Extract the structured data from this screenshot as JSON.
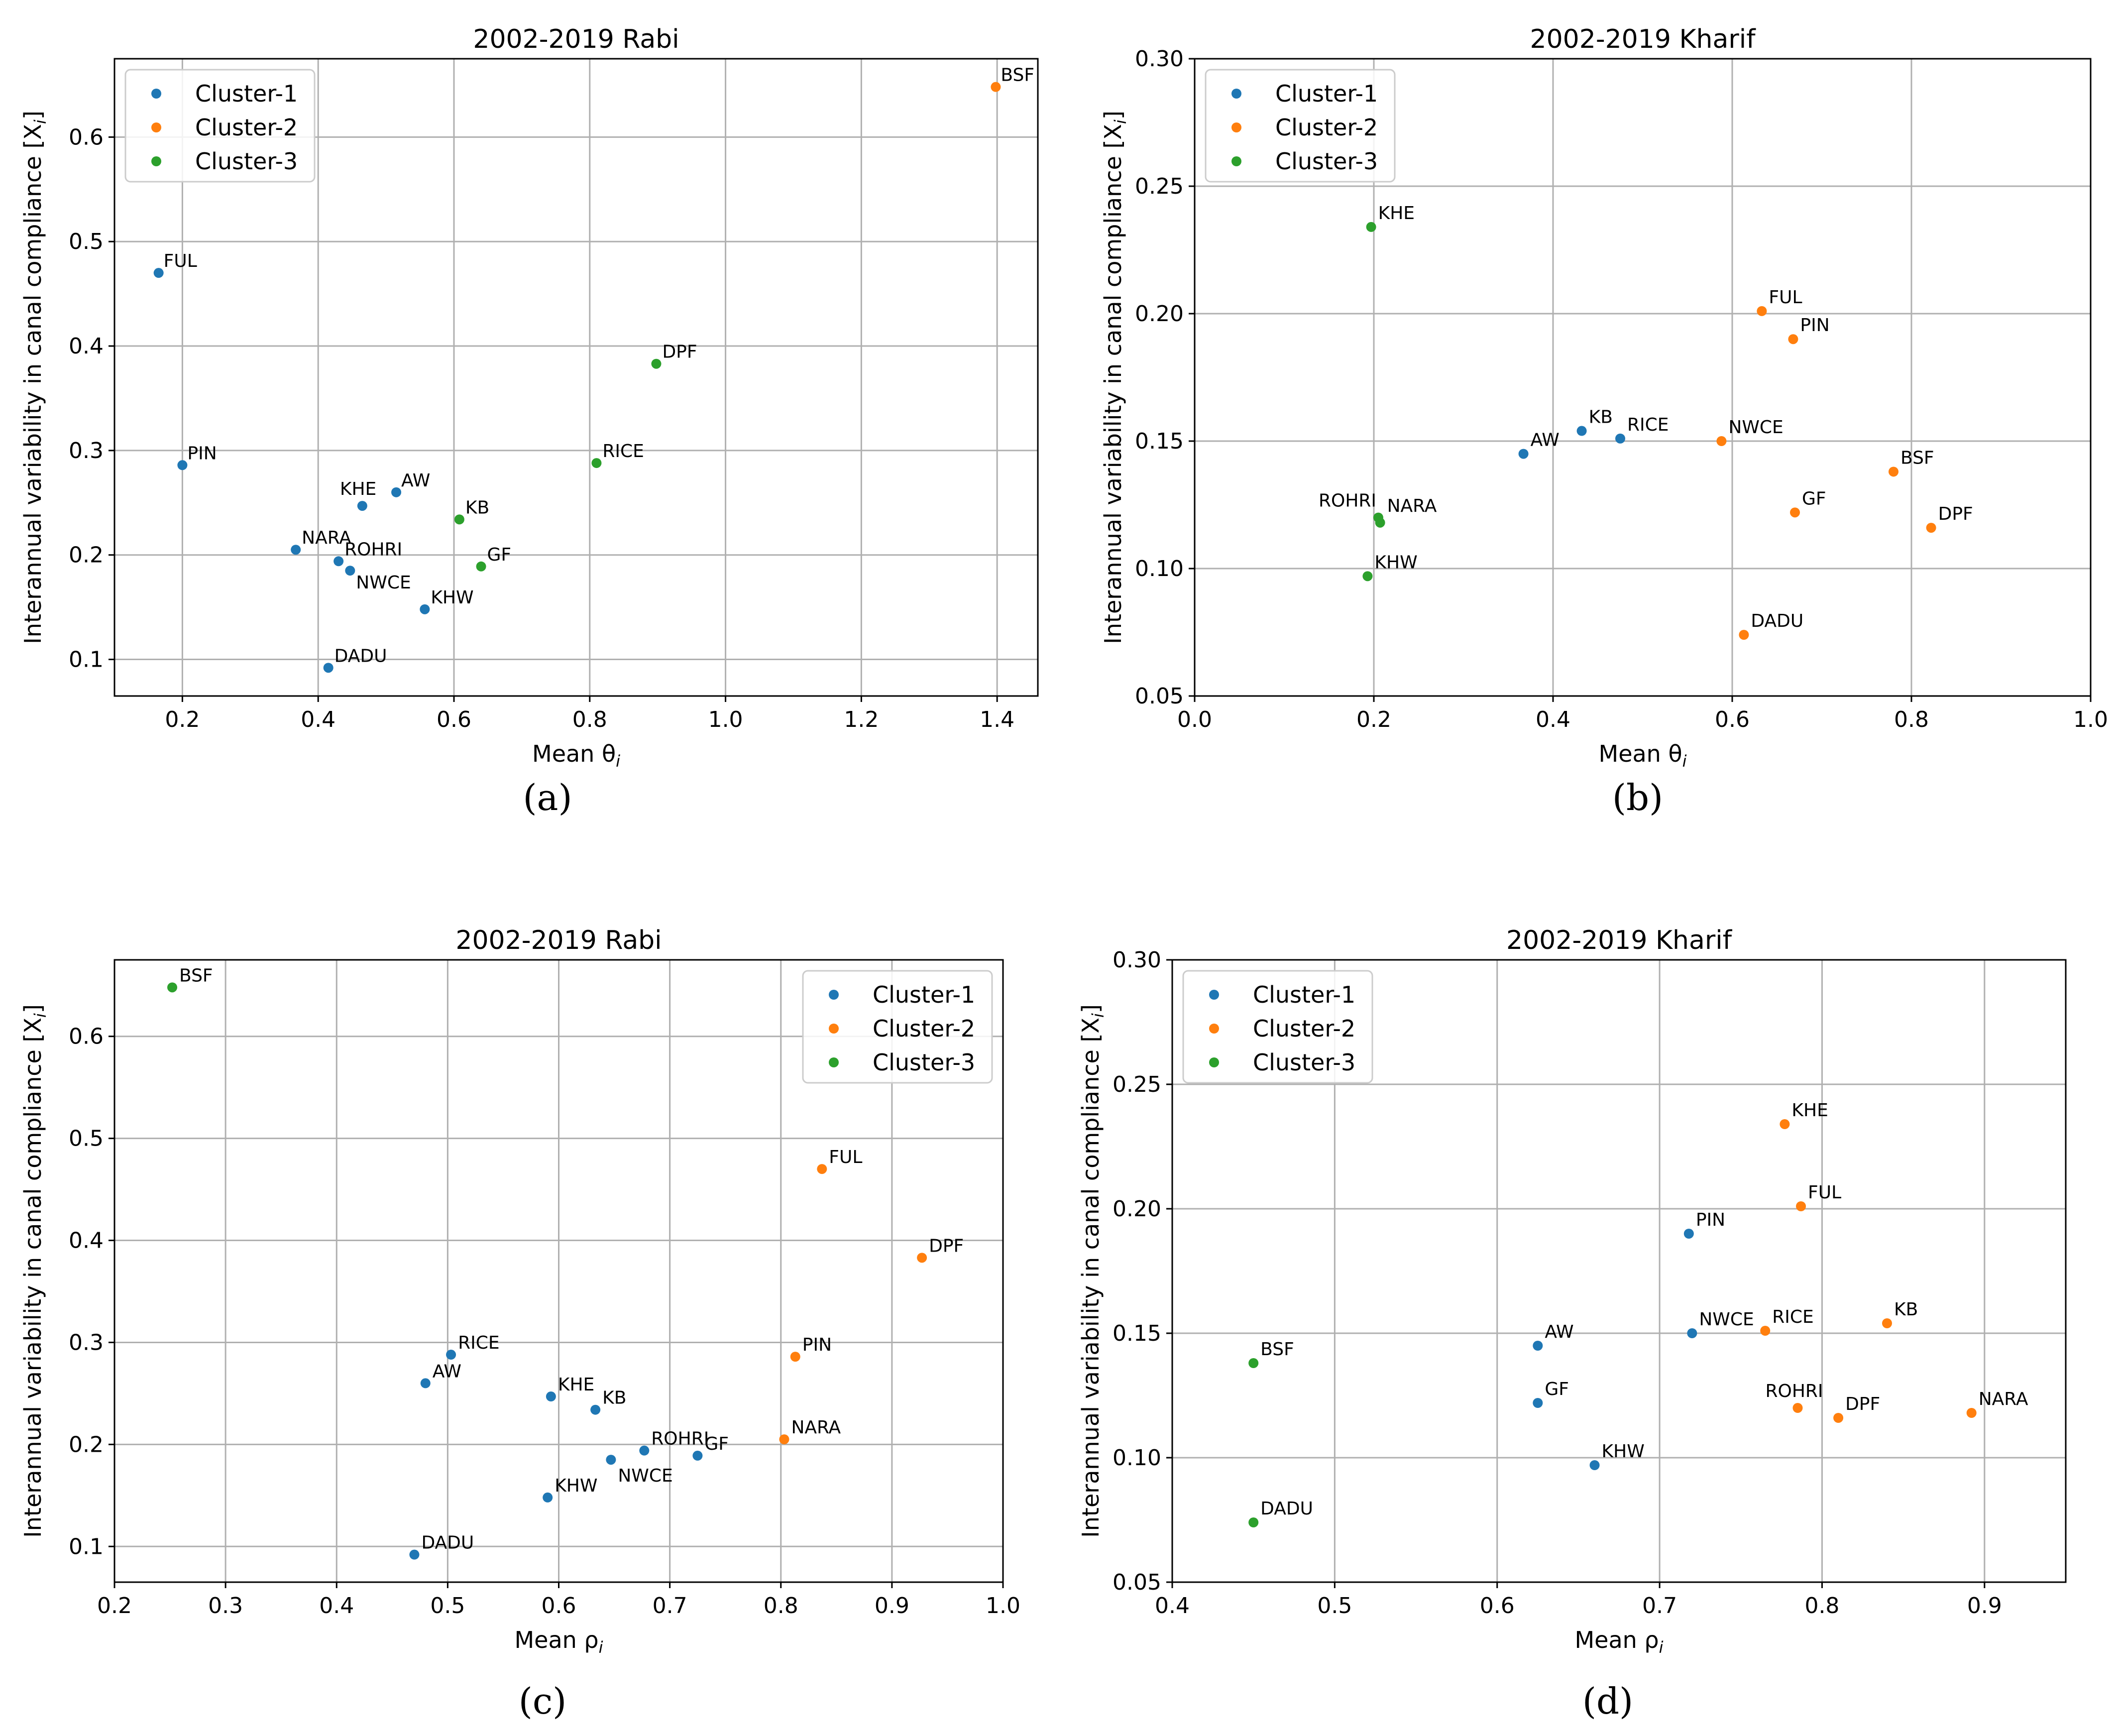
{
  "colors": {
    "Cluster-1": "#1f77b4",
    "Cluster-2": "#ff7f0e",
    "Cluster-3": "#2ca02c"
  },
  "chart_data": [
    {
      "type": "scatter",
      "title": "2002-2019 Rabi",
      "caption": "(a)",
      "xlabel": "Mean θ",
      "xlabel_sub": "i",
      "ylabel": "Interannual variability in canal compliance [X",
      "ylabel_sub": "i",
      "ylabel_end": "]",
      "xlim": [
        0.1,
        1.46
      ],
      "ylim": [
        0.065,
        0.675
      ],
      "xticks": [
        "0.2",
        "0.4",
        "0.6",
        "0.8",
        "1.0",
        "1.2",
        "1.4"
      ],
      "yticks": [
        "0.1",
        "0.2",
        "0.3",
        "0.4",
        "0.5",
        "0.6"
      ],
      "grid": true,
      "legend_position": "upper-left",
      "legend": [
        "Cluster-1",
        "Cluster-2",
        "Cluster-3"
      ],
      "points": [
        {
          "label": "FUL",
          "cluster": "Cluster-1",
          "x": 0.165,
          "y": 0.47
        },
        {
          "label": "PIN",
          "cluster": "Cluster-1",
          "x": 0.2,
          "y": 0.286
        },
        {
          "label": "KHE",
          "cluster": "Cluster-1",
          "x": 0.465,
          "y": 0.247
        },
        {
          "label": "AW",
          "cluster": "Cluster-1",
          "x": 0.515,
          "y": 0.26
        },
        {
          "label": "NARA",
          "cluster": "Cluster-1",
          "x": 0.367,
          "y": 0.205
        },
        {
          "label": "ROHRI",
          "cluster": "Cluster-1",
          "x": 0.43,
          "y": 0.194
        },
        {
          "label": "NWCE",
          "cluster": "Cluster-1",
          "x": 0.447,
          "y": 0.185
        },
        {
          "label": "KHW",
          "cluster": "Cluster-1",
          "x": 0.557,
          "y": 0.148
        },
        {
          "label": "DADU",
          "cluster": "Cluster-1",
          "x": 0.415,
          "y": 0.092
        },
        {
          "label": "BSF",
          "cluster": "Cluster-2",
          "x": 1.398,
          "y": 0.648
        },
        {
          "label": "DPF",
          "cluster": "Cluster-3",
          "x": 0.898,
          "y": 0.383
        },
        {
          "label": "RICE",
          "cluster": "Cluster-3",
          "x": 0.81,
          "y": 0.288
        },
        {
          "label": "KB",
          "cluster": "Cluster-3",
          "x": 0.608,
          "y": 0.234
        },
        {
          "label": "GF",
          "cluster": "Cluster-3",
          "x": 0.64,
          "y": 0.189
        }
      ]
    },
    {
      "type": "scatter",
      "title": "2002-2019 Kharif",
      "caption": "(b)",
      "xlabel": "Mean θ",
      "xlabel_sub": "i",
      "ylabel": "Interannual variability in canal compliance [X",
      "ylabel_sub": "i",
      "ylabel_end": "]",
      "xlim": [
        0.0,
        1.0
      ],
      "ylim": [
        0.05,
        0.3
      ],
      "xticks": [
        "0.0",
        "0.2",
        "0.4",
        "0.6",
        "0.8",
        "1.0"
      ],
      "yticks": [
        "0.05",
        "0.10",
        "0.15",
        "0.20",
        "0.25",
        "0.30"
      ],
      "grid": true,
      "legend_position": "upper-left",
      "legend": [
        "Cluster-1",
        "Cluster-2",
        "Cluster-3"
      ],
      "points": [
        {
          "label": "AW",
          "cluster": "Cluster-1",
          "x": 0.367,
          "y": 0.145
        },
        {
          "label": "KB",
          "cluster": "Cluster-1",
          "x": 0.432,
          "y": 0.154
        },
        {
          "label": "RICE",
          "cluster": "Cluster-1",
          "x": 0.475,
          "y": 0.151
        },
        {
          "label": "KHE",
          "cluster": "Cluster-3",
          "x": 0.197,
          "y": 0.234
        },
        {
          "label": "ROHRI",
          "cluster": "Cluster-3",
          "x": 0.205,
          "y": 0.12
        },
        {
          "label": "NARA",
          "cluster": "Cluster-3",
          "x": 0.207,
          "y": 0.118
        },
        {
          "label": "KHW",
          "cluster": "Cluster-3",
          "x": 0.193,
          "y": 0.097
        },
        {
          "label": "FUL",
          "cluster": "Cluster-2",
          "x": 0.633,
          "y": 0.201
        },
        {
          "label": "PIN",
          "cluster": "Cluster-2",
          "x": 0.668,
          "y": 0.19
        },
        {
          "label": "NWCE",
          "cluster": "Cluster-2",
          "x": 0.588,
          "y": 0.15
        },
        {
          "label": "BSF",
          "cluster": "Cluster-2",
          "x": 0.78,
          "y": 0.138
        },
        {
          "label": "GF",
          "cluster": "Cluster-2",
          "x": 0.67,
          "y": 0.122
        },
        {
          "label": "DPF",
          "cluster": "Cluster-2",
          "x": 0.822,
          "y": 0.116
        },
        {
          "label": "DADU",
          "cluster": "Cluster-2",
          "x": 0.613,
          "y": 0.074
        }
      ]
    },
    {
      "type": "scatter",
      "title": "2002-2019 Rabi",
      "caption": "(c)",
      "xlabel": "Mean ρ",
      "xlabel_sub": "i",
      "ylabel": "Interannual variability in canal compliance [X",
      "ylabel_sub": "i",
      "ylabel_end": "]",
      "xlim": [
        0.2,
        1.0
      ],
      "ylim": [
        0.065,
        0.675
      ],
      "xticks": [
        "0.2",
        "0.3",
        "0.4",
        "0.5",
        "0.6",
        "0.7",
        "0.8",
        "0.9",
        "1.0"
      ],
      "yticks": [
        "0.1",
        "0.2",
        "0.3",
        "0.4",
        "0.5",
        "0.6"
      ],
      "grid": true,
      "legend_position": "upper-right",
      "legend": [
        "Cluster-1",
        "Cluster-2",
        "Cluster-3"
      ],
      "points": [
        {
          "label": "BSF",
          "cluster": "Cluster-3",
          "x": 0.252,
          "y": 0.648
        },
        {
          "label": "FUL",
          "cluster": "Cluster-2",
          "x": 0.837,
          "y": 0.47
        },
        {
          "label": "DPF",
          "cluster": "Cluster-2",
          "x": 0.927,
          "y": 0.383
        },
        {
          "label": "PIN",
          "cluster": "Cluster-2",
          "x": 0.813,
          "y": 0.286
        },
        {
          "label": "NARA",
          "cluster": "Cluster-2",
          "x": 0.803,
          "y": 0.205
        },
        {
          "label": "RICE",
          "cluster": "Cluster-1",
          "x": 0.503,
          "y": 0.288
        },
        {
          "label": "AW",
          "cluster": "Cluster-1",
          "x": 0.48,
          "y": 0.26
        },
        {
          "label": "KHE",
          "cluster": "Cluster-1",
          "x": 0.593,
          "y": 0.247
        },
        {
          "label": "KB",
          "cluster": "Cluster-1",
          "x": 0.633,
          "y": 0.234
        },
        {
          "label": "ROHRI",
          "cluster": "Cluster-1",
          "x": 0.677,
          "y": 0.194
        },
        {
          "label": "GF",
          "cluster": "Cluster-1",
          "x": 0.725,
          "y": 0.189
        },
        {
          "label": "NWCE",
          "cluster": "Cluster-1",
          "x": 0.647,
          "y": 0.185
        },
        {
          "label": "KHW",
          "cluster": "Cluster-1",
          "x": 0.59,
          "y": 0.148
        },
        {
          "label": "DADU",
          "cluster": "Cluster-1",
          "x": 0.47,
          "y": 0.092
        }
      ]
    },
    {
      "type": "scatter",
      "title": "2002-2019 Kharif",
      "caption": "(d)",
      "xlabel": "Mean ρ",
      "xlabel_sub": "i",
      "ylabel": "Interannual variability in canal compliance [X",
      "ylabel_sub": "i",
      "ylabel_end": "]",
      "xlim": [
        0.4,
        0.95
      ],
      "ylim": [
        0.05,
        0.3
      ],
      "xticks": [
        "0.4",
        "0.5",
        "0.6",
        "0.7",
        "0.8",
        "0.9"
      ],
      "yticks": [
        "0.05",
        "0.10",
        "0.15",
        "0.20",
        "0.25",
        "0.30"
      ],
      "grid": true,
      "legend_position": "upper-left",
      "legend": [
        "Cluster-1",
        "Cluster-2",
        "Cluster-3"
      ],
      "points": [
        {
          "label": "PIN",
          "cluster": "Cluster-1",
          "x": 0.718,
          "y": 0.19
        },
        {
          "label": "NWCE",
          "cluster": "Cluster-1",
          "x": 0.72,
          "y": 0.15
        },
        {
          "label": "AW",
          "cluster": "Cluster-1",
          "x": 0.625,
          "y": 0.145
        },
        {
          "label": "GF",
          "cluster": "Cluster-1",
          "x": 0.625,
          "y": 0.122
        },
        {
          "label": "KHW",
          "cluster": "Cluster-1",
          "x": 0.66,
          "y": 0.097
        },
        {
          "label": "KHE",
          "cluster": "Cluster-2",
          "x": 0.777,
          "y": 0.234
        },
        {
          "label": "FUL",
          "cluster": "Cluster-2",
          "x": 0.787,
          "y": 0.201
        },
        {
          "label": "RICE",
          "cluster": "Cluster-2",
          "x": 0.765,
          "y": 0.151
        },
        {
          "label": "KB",
          "cluster": "Cluster-2",
          "x": 0.84,
          "y": 0.154
        },
        {
          "label": "ROHRI",
          "cluster": "Cluster-2",
          "x": 0.785,
          "y": 0.12
        },
        {
          "label": "DPF",
          "cluster": "Cluster-2",
          "x": 0.81,
          "y": 0.116
        },
        {
          "label": "NARA",
          "cluster": "Cluster-2",
          "x": 0.892,
          "y": 0.118
        },
        {
          "label": "BSF",
          "cluster": "Cluster-3",
          "x": 0.45,
          "y": 0.138
        },
        {
          "label": "DADU",
          "cluster": "Cluster-3",
          "x": 0.45,
          "y": 0.074
        }
      ]
    }
  ]
}
